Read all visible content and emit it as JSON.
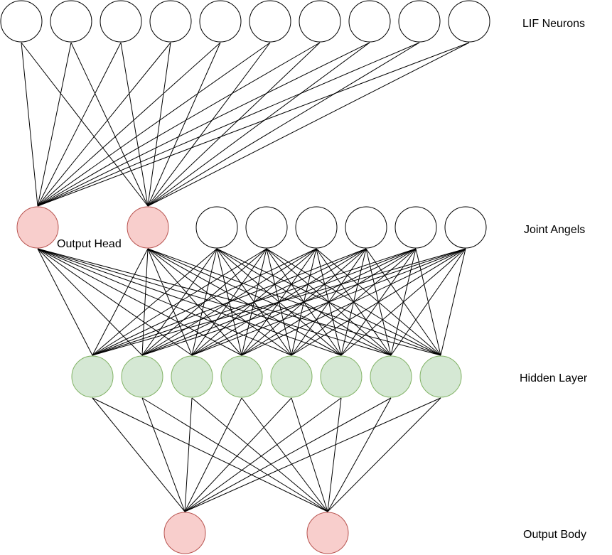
{
  "layers": {
    "lif": {
      "label": "LIF Neurons",
      "count": 10,
      "fill": "#ffffff",
      "stroke": "#000000"
    },
    "joint": {
      "label": "Joint Angels",
      "count": 6,
      "fill": "#ffffff",
      "stroke": "#000000"
    },
    "head": {
      "label": "Output Head",
      "count": 2,
      "fill": "#f8cecc",
      "stroke": "#b85450"
    },
    "hidden": {
      "label": "Hidden Layer",
      "count": 8,
      "fill": "#d5e8d4",
      "stroke": "#82b366"
    },
    "body": {
      "label": "Output Body",
      "count": 2,
      "fill": "#f8cecc",
      "stroke": "#b85450"
    }
  },
  "connections": [
    {
      "from": "lif",
      "to": "head"
    },
    {
      "from": "head",
      "to": "hidden"
    },
    {
      "from": "joint",
      "to": "hidden"
    },
    {
      "from": "hidden",
      "to": "body"
    }
  ]
}
